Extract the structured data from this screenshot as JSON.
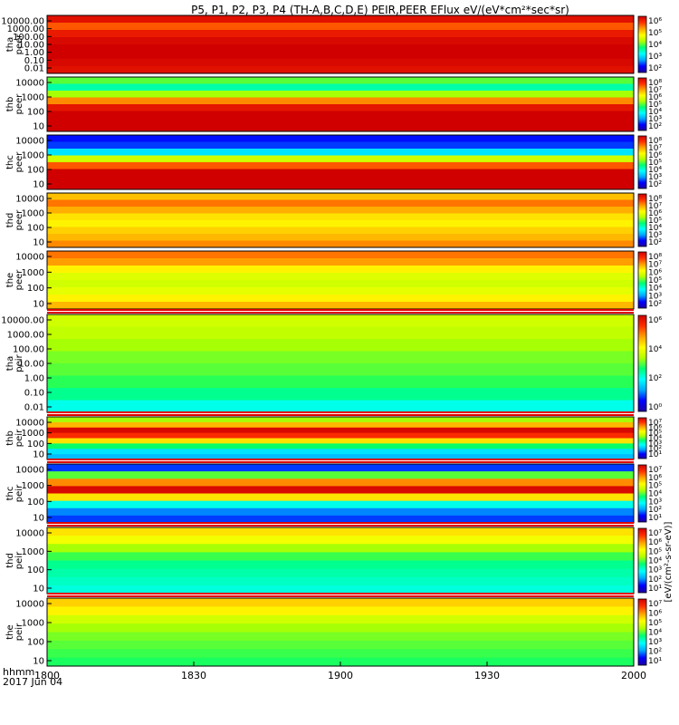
{
  "chart_data": {
    "type": "heatmap",
    "title": "P5, P1, P2, P3, P4 (TH-A,B,C,D,E) PEIR,PEER EFlux eV/(eV*cm²*sec*sr)",
    "x_footer": [
      "hhmm",
      "2017 Jun 04"
    ],
    "x_ticks": [
      "1800",
      "1830",
      "1900",
      "1930",
      "2000"
    ],
    "colorbar_label": "[eV/(cm²-s-sr-eV)]",
    "colorscale": [
      "#1e00a0",
      "#0000ff",
      "#00a8ff",
      "#00ffff",
      "#00ff70",
      "#b0ff00",
      "#ffff00",
      "#ffa000",
      "#ff3000",
      "#d00000"
    ],
    "panels": [
      {
        "ylabel": [
          "tha",
          "peer"
        ],
        "yticks": [
          "10000.00",
          "1000.00",
          "100.00",
          "10.00",
          "1.00",
          "0.10",
          "0.01"
        ],
        "cbar_ticks": [
          "10⁶",
          "10⁵",
          "10⁴",
          "10³",
          "10²"
        ],
        "bands": [
          0.96,
          0.85,
          0.94,
          0.98,
          1.0,
          1.0,
          0.98,
          0.96
        ]
      },
      {
        "ylabel": [
          "thb",
          "peer"
        ],
        "yticks": [
          "10000",
          "1000",
          "100",
          "10"
        ],
        "cbar_ticks": [
          "10⁸",
          "10⁷",
          "10⁶",
          "10⁵",
          "10⁴",
          "10³",
          "10²"
        ],
        "bands": [
          0.5,
          0.4,
          0.55,
          0.8,
          0.95,
          1.0,
          1.0,
          1.0
        ]
      },
      {
        "ylabel": [
          "thc",
          "peer"
        ],
        "yticks": [
          "10000",
          "1000",
          "100",
          "10"
        ],
        "cbar_ticks": [
          "10⁸",
          "10⁷",
          "10⁶",
          "10⁵",
          "10⁴",
          "10³",
          "10²"
        ],
        "bands": [
          0.12,
          0.15,
          0.3,
          0.6,
          0.85,
          1.0,
          1.0,
          1.0
        ]
      },
      {
        "ylabel": [
          "thd",
          "peer"
        ],
        "yticks": [
          "10000",
          "1000",
          "100",
          "10"
        ],
        "cbar_ticks": [
          "10⁸",
          "10⁷",
          "10⁶",
          "10⁵",
          "10⁴",
          "10³",
          "10²"
        ],
        "bands": [
          0.74,
          0.82,
          0.76,
          0.7,
          0.68,
          0.72,
          0.75,
          0.8
        ]
      },
      {
        "ylabel": [
          "the",
          "peer"
        ],
        "yticks": [
          "10000",
          "1000",
          "100",
          "10"
        ],
        "cbar_ticks": [
          "10⁸",
          "10⁷",
          "10⁶",
          "10⁵",
          "10⁴",
          "10³",
          "10²"
        ],
        "bands": [
          0.82,
          0.78,
          0.68,
          0.62,
          0.6,
          0.63,
          0.68,
          0.75
        ]
      },
      {
        "ylabel": [
          "tha",
          "peir"
        ],
        "yticks": [
          "10000.00",
          "1000.00",
          "100.00",
          "10.00",
          "1.00",
          "0.10",
          "0.01"
        ],
        "cbar_ticks": [
          "10⁶",
          "10⁴",
          "10²",
          "10⁰"
        ],
        "bands": [
          0.6,
          0.58,
          0.55,
          0.52,
          0.5,
          0.47,
          0.42,
          0.35
        ]
      },
      {
        "ylabel": [
          "thb",
          "peir"
        ],
        "yticks": [
          "10000",
          "1000",
          "100",
          "10"
        ],
        "cbar_ticks": [
          "10⁷",
          "10⁶",
          "10⁵",
          "10⁴",
          "10³",
          "10²",
          "10¹"
        ],
        "bands": [
          0.55,
          0.75,
          0.98,
          0.9,
          0.7,
          0.45,
          0.3,
          0.25
        ]
      },
      {
        "ylabel": [
          "thc",
          "peir"
        ],
        "yticks": [
          "10000",
          "1000",
          "100",
          "10"
        ],
        "cbar_ticks": [
          "10⁷",
          "10⁶",
          "10⁵",
          "10⁴",
          "10³",
          "10²",
          "10¹"
        ],
        "bands": [
          0.15,
          0.5,
          0.8,
          0.98,
          0.7,
          0.35,
          0.2,
          0.15
        ]
      },
      {
        "ylabel": [
          "thd",
          "peir"
        ],
        "yticks": [
          "10000",
          "1000",
          "100",
          "10"
        ],
        "cbar_ticks": [
          "10⁷",
          "10⁶",
          "10⁵",
          "10⁴",
          "10³",
          "10²",
          "10¹"
        ],
        "bands": [
          0.7,
          0.65,
          0.55,
          0.48,
          0.42,
          0.4,
          0.38,
          0.36
        ]
      },
      {
        "ylabel": [
          "the",
          "peir"
        ],
        "yticks": [
          "10000",
          "1000",
          "100",
          "10"
        ],
        "cbar_ticks": [
          "10⁷",
          "10⁶",
          "10⁵",
          "10⁴",
          "10³",
          "10²",
          "10¹"
        ],
        "bands": [
          0.72,
          0.68,
          0.6,
          0.55,
          0.52,
          0.5,
          0.48,
          0.46
        ]
      }
    ]
  }
}
